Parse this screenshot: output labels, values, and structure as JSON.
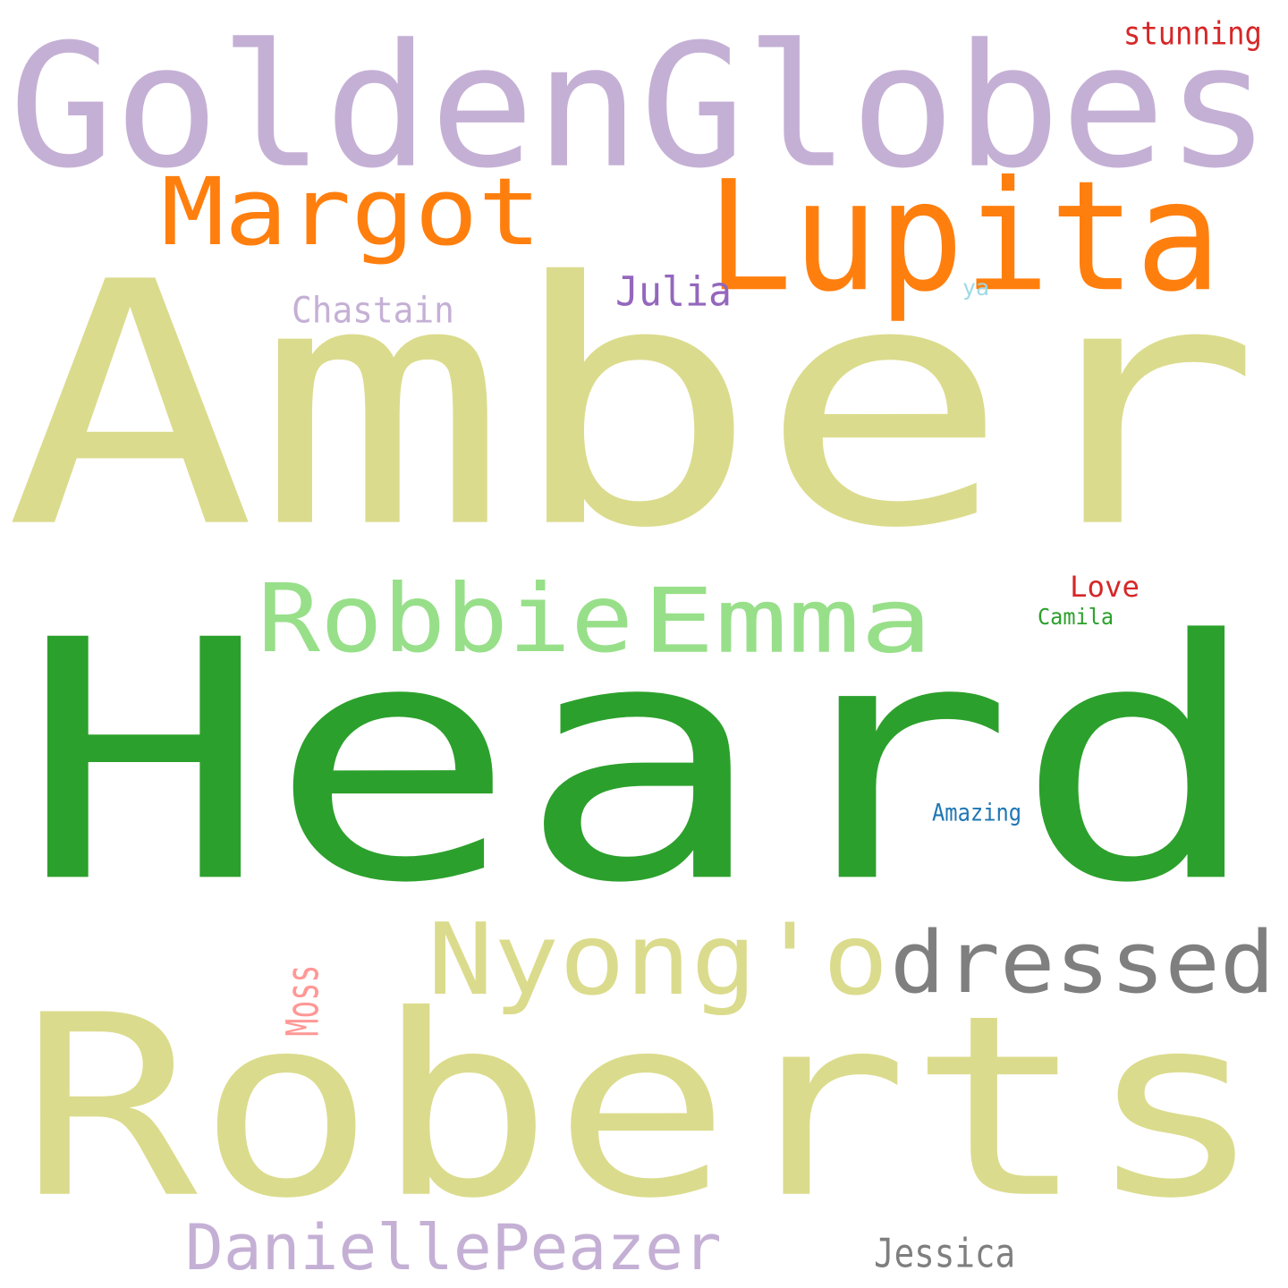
{
  "background": "#ffffff",
  "words": [
    {
      "text": "Heard",
      "color": "#2ca02c"
    },
    {
      "text": "Amber",
      "color": "#dbdb8d"
    },
    {
      "text": "Roberts",
      "color": "#dbdb8d"
    },
    {
      "text": "GoldenGlobes",
      "color": "#c5b0d5"
    },
    {
      "text": "Lupita",
      "color": "#ff7f0e"
    },
    {
      "text": "Margot",
      "color": "#ff7f0e"
    },
    {
      "text": "Robbie",
      "color": "#98df8a"
    },
    {
      "text": "Emma",
      "color": "#98df8a"
    },
    {
      "text": "Nyong'o",
      "color": "#dbdb8d"
    },
    {
      "text": "dressed",
      "color": "#7f7f7f"
    },
    {
      "text": "DaniellePeazer",
      "color": "#c5b0d5"
    },
    {
      "text": "Julia",
      "color": "#9467bd"
    },
    {
      "text": "Chastain",
      "color": "#c5b0d5"
    },
    {
      "text": "Jessica",
      "color": "#7f7f7f"
    },
    {
      "text": "stunning",
      "color": "#d62728"
    },
    {
      "text": "Love",
      "color": "#d62728"
    },
    {
      "text": "Camila",
      "color": "#2ca02c"
    },
    {
      "text": "Amazing",
      "color": "#1f77b4"
    },
    {
      "text": "Moss",
      "color": "#ff9896"
    },
    {
      "text": "ya",
      "color": "#9edae5"
    }
  ]
}
